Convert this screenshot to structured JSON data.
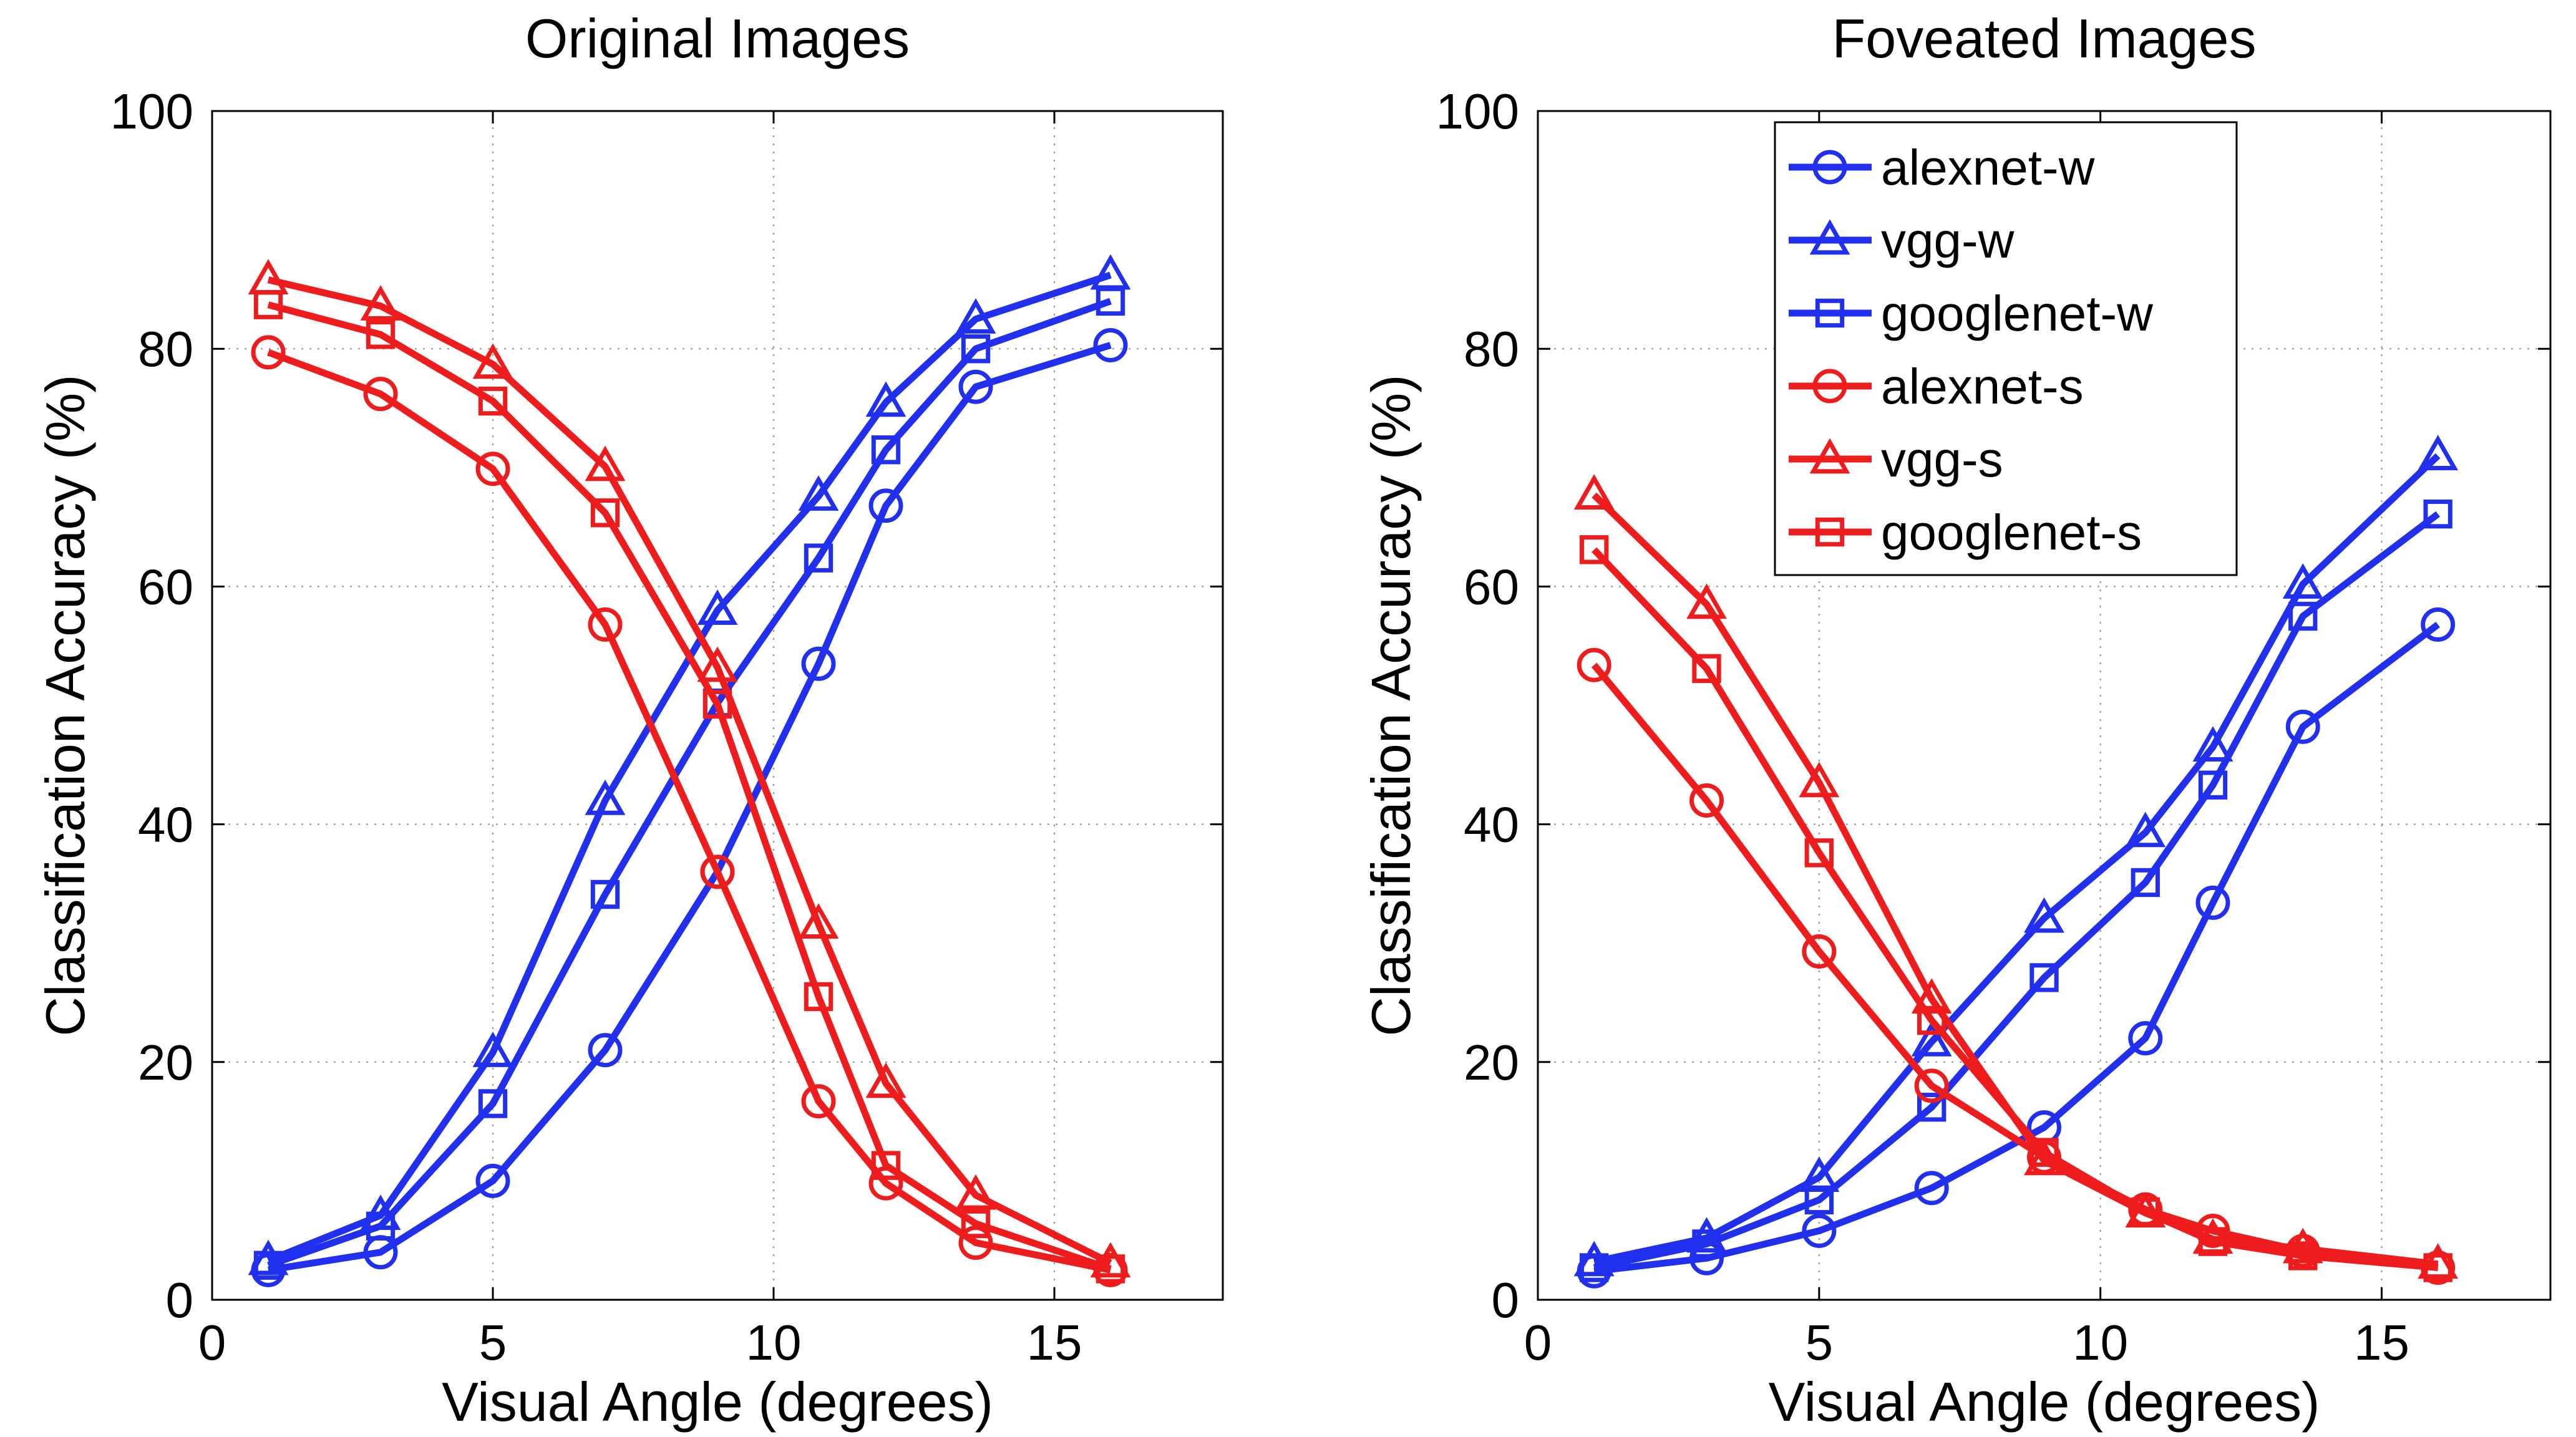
{
  "chart_data": [
    {
      "type": "line",
      "title": "Original Images",
      "xlabel": "Visual Angle (degrees)",
      "ylabel": "Classification Accuracy (%)",
      "xlim": [
        0,
        18
      ],
      "ylim": [
        0,
        100
      ],
      "xticks": [
        0,
        5,
        10,
        15
      ],
      "yticks": [
        0,
        20,
        40,
        60,
        80,
        100
      ],
      "grid": true,
      "x": [
        1,
        3,
        5,
        7,
        9,
        10.8,
        12,
        13.6,
        16
      ],
      "series": [
        {
          "name": "alexnet-w",
          "color": "#2030ee",
          "marker": "circle",
          "values": [
            2.5,
            4,
            10,
            21,
            36,
            53.5,
            66.8,
            76.8,
            80.3
          ]
        },
        {
          "name": "vgg-w",
          "color": "#2030ee",
          "marker": "triangle",
          "values": [
            3.3,
            7.1,
            20.8,
            42,
            58,
            67.6,
            75.5,
            82.5,
            86.2
          ]
        },
        {
          "name": "googlenet-w",
          "color": "#2030ee",
          "marker": "square",
          "values": [
            2.9,
            6.2,
            16.5,
            34.1,
            50.2,
            62.4,
            71.5,
            80,
            84
          ]
        },
        {
          "name": "alexnet-s",
          "color": "#ee1c1c",
          "marker": "circle",
          "values": [
            79.7,
            76.2,
            69.9,
            56.8,
            36,
            16.7,
            9.8,
            4.8,
            2.5
          ]
        },
        {
          "name": "vgg-s",
          "color": "#ee1c1c",
          "marker": "triangle",
          "values": [
            85.8,
            83.6,
            78.7,
            70.1,
            53.2,
            31.6,
            18.2,
            8.8,
            3.1
          ]
        },
        {
          "name": "googlenet-s",
          "color": "#ee1c1c",
          "marker": "square",
          "values": [
            83.7,
            81.2,
            75.6,
            66.2,
            50.1,
            25.5,
            11.3,
            6.4,
            2.6
          ]
        }
      ]
    },
    {
      "type": "line",
      "title": "Foveated Images",
      "xlabel": "Visual Angle (degrees)",
      "ylabel": "Classification Accuracy (%)",
      "xlim": [
        0,
        18
      ],
      "ylim": [
        0,
        100
      ],
      "xticks": [
        0,
        5,
        10,
        15
      ],
      "yticks": [
        0,
        20,
        40,
        60,
        80,
        100
      ],
      "grid": true,
      "legend": "top-right",
      "x": [
        1,
        3,
        5,
        7,
        9,
        10.8,
        12,
        13.6,
        16
      ],
      "series": [
        {
          "name": "alexnet-w",
          "color": "#2030ee",
          "marker": "circle",
          "values": [
            2.4,
            3.5,
            5.8,
            9.4,
            14.5,
            22,
            33.4,
            48.2,
            56.8
          ]
        },
        {
          "name": "vgg-w",
          "color": "#2030ee",
          "marker": "triangle",
          "values": [
            3.2,
            5.2,
            10.3,
            21.7,
            32.1,
            39.3,
            46.5,
            60.2,
            71
          ]
        },
        {
          "name": "googlenet-w",
          "color": "#2030ee",
          "marker": "square",
          "values": [
            2.7,
            4.7,
            8.4,
            16.2,
            27.1,
            35.1,
            43.3,
            57.5,
            66.1
          ]
        },
        {
          "name": "alexnet-s",
          "color": "#ee1c1c",
          "marker": "circle",
          "values": [
            53.4,
            42,
            29.3,
            18,
            12,
            7.6,
            5.8,
            4.1,
            2.7
          ]
        },
        {
          "name": "vgg-s",
          "color": "#ee1c1c",
          "marker": "triangle",
          "values": [
            67.7,
            58.5,
            43.5,
            25.3,
            11.7,
            7.3,
            5.1,
            4.3,
            3
          ]
        },
        {
          "name": "googlenet-s",
          "color": "#ee1c1c",
          "marker": "square",
          "values": [
            63.1,
            53.1,
            37.6,
            23.5,
            12.4,
            7.4,
            4.9,
            3.7,
            2.7
          ]
        }
      ]
    }
  ]
}
